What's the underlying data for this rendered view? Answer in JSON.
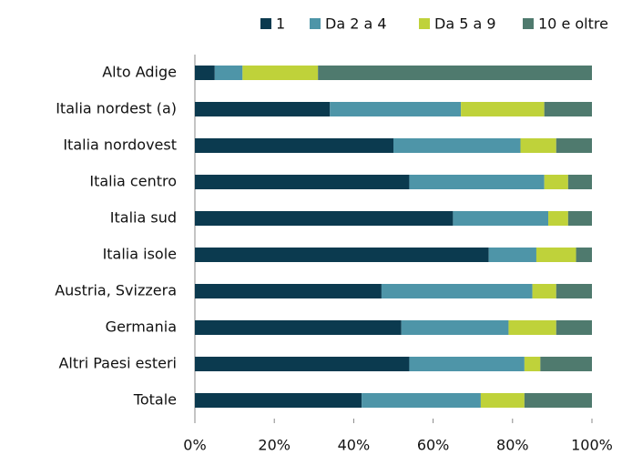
{
  "chart_data": {
    "type": "stacked_bar_horizontal",
    "categories": [
      "Alto Adige",
      "Italia nordest (a)",
      "Italia nordovest",
      "Italia centro",
      "Italia sud",
      "Italia isole",
      "Austria, Svizzera",
      "Germania",
      "Altri Paesi esteri",
      "Totale"
    ],
    "series": [
      {
        "name": "1",
        "color": "#0b3a4f",
        "values": [
          5,
          34,
          50,
          54,
          65,
          74,
          47,
          52,
          54,
          42
        ]
      },
      {
        "name": "Da 2 a 4",
        "color": "#4e95a8",
        "values": [
          7,
          33,
          32,
          34,
          24,
          12,
          38,
          27,
          29,
          30
        ]
      },
      {
        "name": "Da 5 a 9",
        "color": "#bfd23a",
        "values": [
          19,
          21,
          9,
          6,
          5,
          10,
          6,
          12,
          4,
          11
        ]
      },
      {
        "name": "10 e oltre",
        "color": "#4f7a6e",
        "values": [
          69,
          12,
          9,
          6,
          6,
          4,
          9,
          9,
          13,
          17
        ]
      }
    ],
    "xlim": [
      0,
      100
    ],
    "xticks": [
      {
        "value": 0,
        "label": "0%"
      },
      {
        "value": 20,
        "label": "20%"
      },
      {
        "value": 40,
        "label": "40%"
      },
      {
        "value": 60,
        "label": "60%"
      },
      {
        "value": 80,
        "label": "80%"
      },
      {
        "value": 100,
        "label": "100%"
      }
    ],
    "legend": "top"
  }
}
